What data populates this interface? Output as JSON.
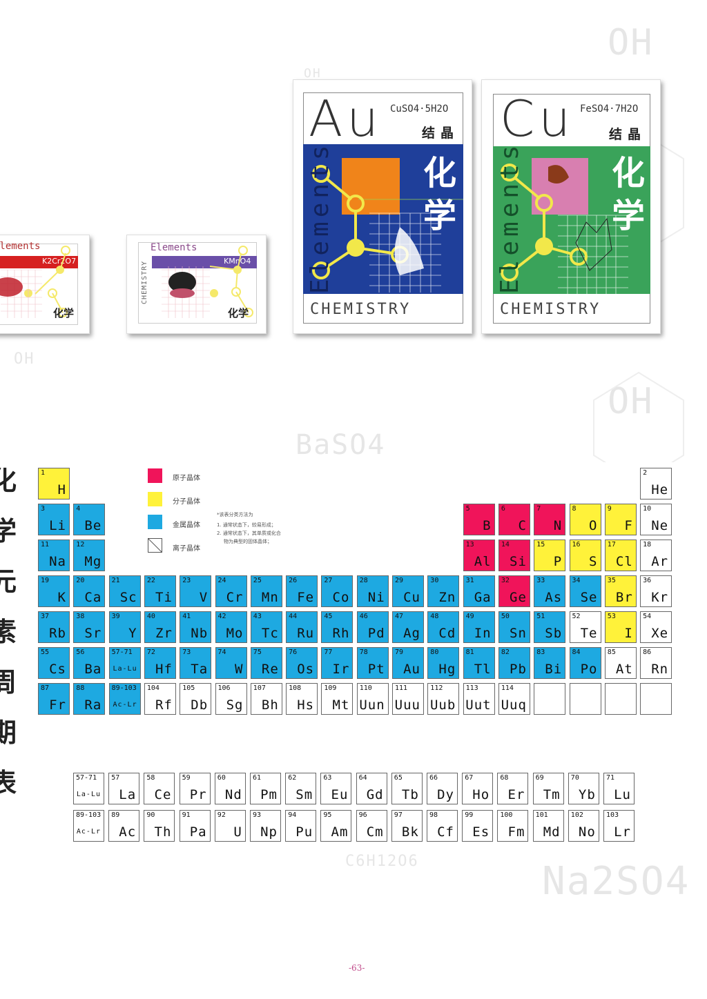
{
  "vertical_title": "化学元素周期表",
  "watermarks": {
    "top_right": "OH",
    "mid_right": "OH",
    "center": "BaSO4",
    "left_mid": "OH",
    "bottom_center": "C6H12O6",
    "bottom_right": "Na2SO4",
    "top_ghost": "OH"
  },
  "posters": [
    {
      "label": "Elements",
      "formula": "K2Cr2O7",
      "title": "化学",
      "band_color": "#d62020"
    },
    {
      "label": "Elements",
      "formula": "KMnO4",
      "title": "化学",
      "side_text": "CHEMISTRY",
      "band_color": "#6a4fa8"
    },
    {
      "symbol": "Au",
      "formula": "CuSO4·5H2O",
      "subtitle": "结晶",
      "title": "化学",
      "vertical": "Elements",
      "footer": "CHEMISTRY",
      "bg_color": "#1f3f9a",
      "square_color": "#f0841a"
    },
    {
      "symbol": "Cu",
      "formula": "FeSO4·7H2O",
      "subtitle": "结晶",
      "title": "化学",
      "vertical": "Elements",
      "footer": "CHEMISTRY",
      "bg_color": "#3aa35a",
      "square_color": "#d87fb0"
    }
  ],
  "legend": {
    "items": [
      {
        "label": "原子晶体",
        "color": "#f0145a"
      },
      {
        "label": "分子晶体",
        "color": "#fff23a"
      },
      {
        "label": "金属晶体",
        "color": "#1ea9e1"
      },
      {
        "label": "离子晶体",
        "color": "#ffffff"
      }
    ],
    "note_title": "*该表分类方法为",
    "note_lines": [
      "1. 通常状态下，较易形成；",
      "2. 通常状态下，其单质或化合",
      "物为典型的固体晶体；"
    ]
  },
  "colors": {
    "m": "#1ea9e1",
    "a": "#f0145a",
    "o": "#fff23a",
    "i": "#ffffff"
  },
  "table_rows": [
    [
      [
        "1",
        "H",
        "o"
      ],
      null,
      null,
      null,
      null,
      null,
      null,
      null,
      null,
      null,
      null,
      null,
      null,
      null,
      null,
      null,
      null,
      [
        "2",
        "He",
        "i"
      ]
    ],
    [
      [
        "3",
        "Li",
        "m"
      ],
      [
        "4",
        "Be",
        "m"
      ],
      null,
      null,
      null,
      null,
      null,
      null,
      null,
      null,
      null,
      null,
      [
        "5",
        "B",
        "a"
      ],
      [
        "6",
        "C",
        "a"
      ],
      [
        "7",
        "N",
        "a"
      ],
      [
        "8",
        "O",
        "o"
      ],
      [
        "9",
        "F",
        "o"
      ],
      [
        "10",
        "Ne",
        "i"
      ]
    ],
    [
      [
        "11",
        "Na",
        "m"
      ],
      [
        "12",
        "Mg",
        "m"
      ],
      null,
      null,
      null,
      null,
      null,
      null,
      null,
      null,
      null,
      null,
      [
        "13",
        "Al",
        "a"
      ],
      [
        "14",
        "Si",
        "a"
      ],
      [
        "15",
        "P",
        "o"
      ],
      [
        "16",
        "S",
        "o"
      ],
      [
        "17",
        "Cl",
        "o"
      ],
      [
        "18",
        "Ar",
        "i"
      ]
    ],
    [
      [
        "19",
        "K",
        "m"
      ],
      [
        "20",
        "Ca",
        "m"
      ],
      [
        "21",
        "Sc",
        "m"
      ],
      [
        "22",
        "Ti",
        "m"
      ],
      [
        "23",
        "V",
        "m"
      ],
      [
        "24",
        "Cr",
        "m"
      ],
      [
        "25",
        "Mn",
        "m"
      ],
      [
        "26",
        "Fe",
        "m"
      ],
      [
        "27",
        "Co",
        "m"
      ],
      [
        "28",
        "Ni",
        "m"
      ],
      [
        "29",
        "Cu",
        "m"
      ],
      [
        "30",
        "Zn",
        "m"
      ],
      [
        "31",
        "Ga",
        "m"
      ],
      [
        "32",
        "Ge",
        "a"
      ],
      [
        "33",
        "As",
        "m"
      ],
      [
        "34",
        "Se",
        "m"
      ],
      [
        "35",
        "Br",
        "o"
      ],
      [
        "36",
        "Kr",
        "i"
      ]
    ],
    [
      [
        "37",
        "Rb",
        "m"
      ],
      [
        "38",
        "Sr",
        "m"
      ],
      [
        "39",
        "Y",
        "m"
      ],
      [
        "40",
        "Zr",
        "m"
      ],
      [
        "41",
        "Nb",
        "m"
      ],
      [
        "42",
        "Mo",
        "m"
      ],
      [
        "43",
        "Tc",
        "m"
      ],
      [
        "44",
        "Ru",
        "m"
      ],
      [
        "45",
        "Rh",
        "m"
      ],
      [
        "46",
        "Pd",
        "m"
      ],
      [
        "47",
        "Ag",
        "m"
      ],
      [
        "48",
        "Cd",
        "m"
      ],
      [
        "49",
        "In",
        "m"
      ],
      [
        "50",
        "Sn",
        "m"
      ],
      [
        "51",
        "Sb",
        "m"
      ],
      [
        "52",
        "Te",
        "i"
      ],
      [
        "53",
        "I",
        "o"
      ],
      [
        "54",
        "Xe",
        "i"
      ]
    ],
    [
      [
        "55",
        "Cs",
        "m"
      ],
      [
        "56",
        "Ba",
        "m"
      ],
      [
        "57-71",
        "La-Lu",
        "m"
      ],
      [
        "72",
        "Hf",
        "m"
      ],
      [
        "73",
        "Ta",
        "m"
      ],
      [
        "74",
        "W",
        "m"
      ],
      [
        "75",
        "Re",
        "m"
      ],
      [
        "76",
        "Os",
        "m"
      ],
      [
        "77",
        "Ir",
        "m"
      ],
      [
        "78",
        "Pt",
        "m"
      ],
      [
        "79",
        "Au",
        "m"
      ],
      [
        "80",
        "Hg",
        "m"
      ],
      [
        "81",
        "Tl",
        "m"
      ],
      [
        "82",
        "Pb",
        "m"
      ],
      [
        "83",
        "Bi",
        "m"
      ],
      [
        "84",
        "Po",
        "m"
      ],
      [
        "85",
        "At",
        "i"
      ],
      [
        "86",
        "Rn",
        "i"
      ]
    ],
    [
      [
        "87",
        "Fr",
        "m"
      ],
      [
        "88",
        "Ra",
        "m"
      ],
      [
        "89-103",
        "Ac-Lr",
        "m"
      ],
      [
        "104",
        "Rf",
        "i"
      ],
      [
        "105",
        "Db",
        "i"
      ],
      [
        "106",
        "Sg",
        "i"
      ],
      [
        "107",
        "Bh",
        "i"
      ],
      [
        "108",
        "Hs",
        "i"
      ],
      [
        "109",
        "Mt",
        "i"
      ],
      [
        "110",
        "Uun",
        "i"
      ],
      [
        "111",
        "Uuu",
        "i"
      ],
      [
        "112",
        "Uub",
        "i"
      ],
      [
        "113",
        "Uut",
        "i"
      ],
      [
        "114",
        "Uuq",
        "i"
      ],
      [
        "",
        "",
        "i"
      ],
      [
        "",
        "",
        "i"
      ],
      [
        "",
        "",
        "i"
      ],
      [
        "",
        "",
        "i"
      ]
    ]
  ],
  "series_rows": [
    [
      [
        "57-71",
        "La-Lu"
      ],
      [
        "57",
        "La"
      ],
      [
        "58",
        "Ce"
      ],
      [
        "59",
        "Pr"
      ],
      [
        "60",
        "Nd"
      ],
      [
        "61",
        "Pm"
      ],
      [
        "62",
        "Sm"
      ],
      [
        "63",
        "Eu"
      ],
      [
        "64",
        "Gd"
      ],
      [
        "65",
        "Tb"
      ],
      [
        "66",
        "Dy"
      ],
      [
        "67",
        "Ho"
      ],
      [
        "68",
        "Er"
      ],
      [
        "69",
        "Tm"
      ],
      [
        "70",
        "Yb"
      ],
      [
        "71",
        "Lu"
      ]
    ],
    [
      [
        "89-103",
        "Ac-Lr"
      ],
      [
        "89",
        "Ac"
      ],
      [
        "90",
        "Th"
      ],
      [
        "91",
        "Pa"
      ],
      [
        "92",
        "U"
      ],
      [
        "93",
        "Np"
      ],
      [
        "94",
        "Pu"
      ],
      [
        "95",
        "Am"
      ],
      [
        "96",
        "Cm"
      ],
      [
        "97",
        "Bk"
      ],
      [
        "98",
        "Cf"
      ],
      [
        "99",
        "Es"
      ],
      [
        "100",
        "Fm"
      ],
      [
        "101",
        "Md"
      ],
      [
        "102",
        "No"
      ],
      [
        "103",
        "Lr"
      ]
    ]
  ],
  "page_number": "-63-"
}
